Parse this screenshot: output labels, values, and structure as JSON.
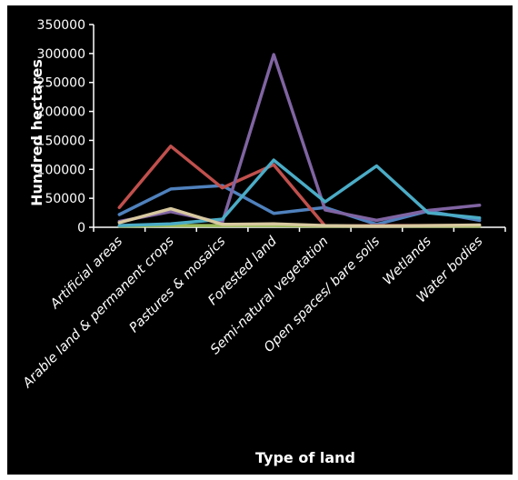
{
  "chart_data": {
    "type": "line",
    "title": "",
    "xlabel": "Type of land",
    "ylabel": "Hundred hectares",
    "ylim": [
      0,
      350000
    ],
    "yticks": [
      "0",
      "50000",
      "100000",
      "150000",
      "200000",
      "250000",
      "300000",
      "350000"
    ],
    "grid": false,
    "legend": "none",
    "categories": [
      "Artificial areas",
      "Arable land & permanent crops",
      "Pastures & mosaics",
      "Forested land",
      "Semi-natural vegetation",
      "Open spaces/ bare soils",
      "Wetlands",
      "Water bodies"
    ],
    "series": [
      {
        "color": "#4F81BD",
        "values": [
          22000,
          66000,
          72000,
          24000,
          34000,
          5000,
          28000,
          12000
        ]
      },
      {
        "color": "#C0504D",
        "values": [
          34000,
          140000,
          68000,
          108000,
          2000,
          3000,
          3000,
          3000
        ]
      },
      {
        "color": "#9BBB59",
        "values": [
          2000,
          3000,
          3000,
          3000,
          2000,
          2000,
          2000,
          2000
        ]
      },
      {
        "color": "#8064A2",
        "values": [
          10000,
          27000,
          8000,
          298000,
          30000,
          12000,
          29000,
          38000
        ]
      },
      {
        "color": "#4BACC6",
        "values": [
          3000,
          6000,
          14000,
          116000,
          44000,
          106000,
          25000,
          16000
        ]
      },
      {
        "color": "#D8C9A0",
        "values": [
          8000,
          32000,
          5000,
          6000,
          3000,
          2000,
          3000,
          4000
        ]
      }
    ]
  }
}
